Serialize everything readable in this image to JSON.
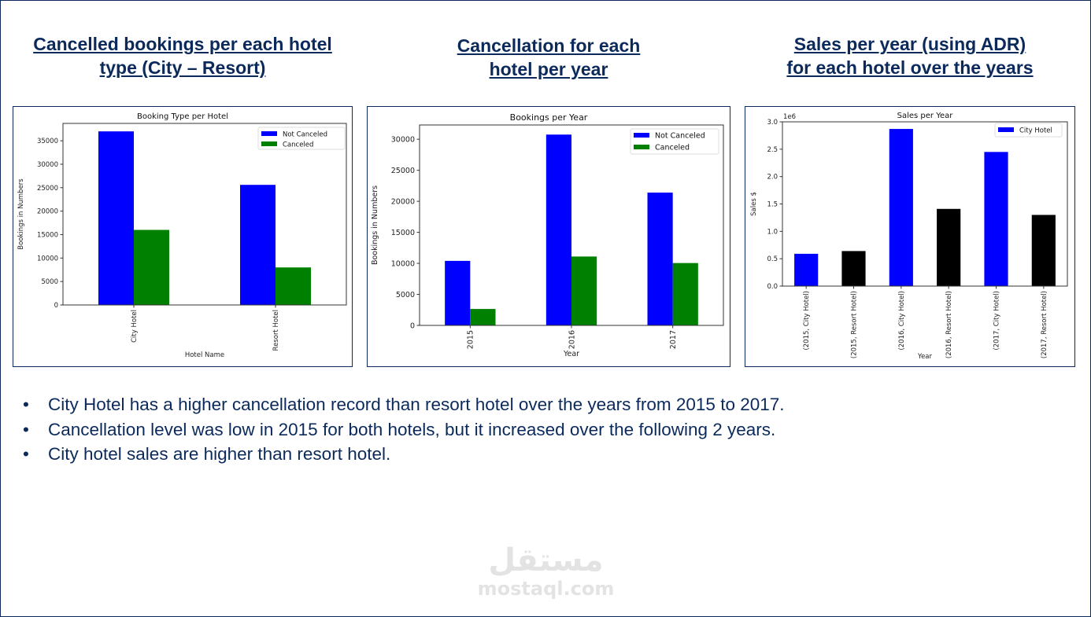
{
  "headings": [
    {
      "line1": "Cancelled bookings per each hotel",
      "line2": "type (City – Resort)"
    },
    {
      "line1": "Cancellation for each",
      "line2": "hotel per year"
    },
    {
      "line1": "Sales per year (using  ADR)",
      "line2": "for each hotel over the years"
    }
  ],
  "bullets": [
    "City Hotel has a higher cancellation record than resort hotel over the years from 2015 to 2017.",
    "Cancellation level was low in 2015 for both hotels, but it increased over the following 2 years.",
    "City hotel sales are higher than resort hotel."
  ],
  "bullet_symbol": "•",
  "watermark": {
    "arabic": "مستقل",
    "latin": "mostaql.com"
  },
  "chart_data": [
    {
      "type": "bar",
      "title": "Booking Type per Hotel",
      "xlabel": "Hotel Name",
      "ylabel": "Bookings in Numbers",
      "categories": [
        "City Hotel",
        "Resort Hotel"
      ],
      "series": [
        {
          "name": "Not Canceled",
          "color": "#0000ff",
          "values": [
            37000,
            25600
          ]
        },
        {
          "name": "Canceled",
          "color": "#008000",
          "values": [
            16000,
            8000
          ]
        }
      ],
      "ylim": [
        0,
        38700
      ],
      "yticks": [
        "0",
        "5000",
        "10000",
        "15000",
        "20000",
        "25000",
        "30000",
        "35000"
      ],
      "ytick_values": [
        0,
        5000,
        10000,
        15000,
        20000,
        25000,
        30000,
        35000
      ],
      "legend": "top-right",
      "grid": false
    },
    {
      "type": "bar",
      "title": "Bookings per Year",
      "xlabel": "Year",
      "ylabel": "Bookings in Numbers",
      "categories": [
        "2015",
        "2016",
        "2017"
      ],
      "series": [
        {
          "name": "Not Canceled",
          "color": "#0000ff",
          "values": [
            10400,
            30750,
            21400
          ]
        },
        {
          "name": "Canceled",
          "color": "#008000",
          "values": [
            2650,
            11100,
            10050
          ]
        }
      ],
      "ylim": [
        0,
        32300
      ],
      "yticks": [
        "0",
        "5000",
        "10000",
        "15000",
        "20000",
        "25000",
        "30000"
      ],
      "ytick_values": [
        0,
        5000,
        10000,
        15000,
        20000,
        25000,
        30000
      ],
      "legend": "top-right",
      "grid": false
    },
    {
      "type": "bar",
      "title": "Sales per Year",
      "xlabel": "Year",
      "ylabel": "Sales $",
      "offset_label": "1e6",
      "categories": [
        "(2015, City Hotel)",
        "(2015, Resort Hotel)",
        "(2016, City Hotel)",
        "(2016, Resort Hotel)",
        "(2017, City Hotel)",
        "(2017, Resort Hotel)"
      ],
      "values": [
        0.59,
        0.64,
        2.87,
        1.41,
        2.45,
        1.3
      ],
      "bar_colors": [
        "#0000ff",
        "#000000",
        "#0000ff",
        "#000000",
        "#0000ff",
        "#000000"
      ],
      "series": [
        {
          "name": "City Hotel",
          "color": "#0000ff"
        }
      ],
      "ylim": [
        0,
        3.0
      ],
      "yticks": [
        "0.0",
        "0.5",
        "1.0",
        "1.5",
        "2.0",
        "2.5",
        "3.0"
      ],
      "ytick_values": [
        0,
        0.5,
        1.0,
        1.5,
        2.0,
        2.5,
        3.0
      ],
      "legend": "top-right",
      "grid": false
    }
  ]
}
